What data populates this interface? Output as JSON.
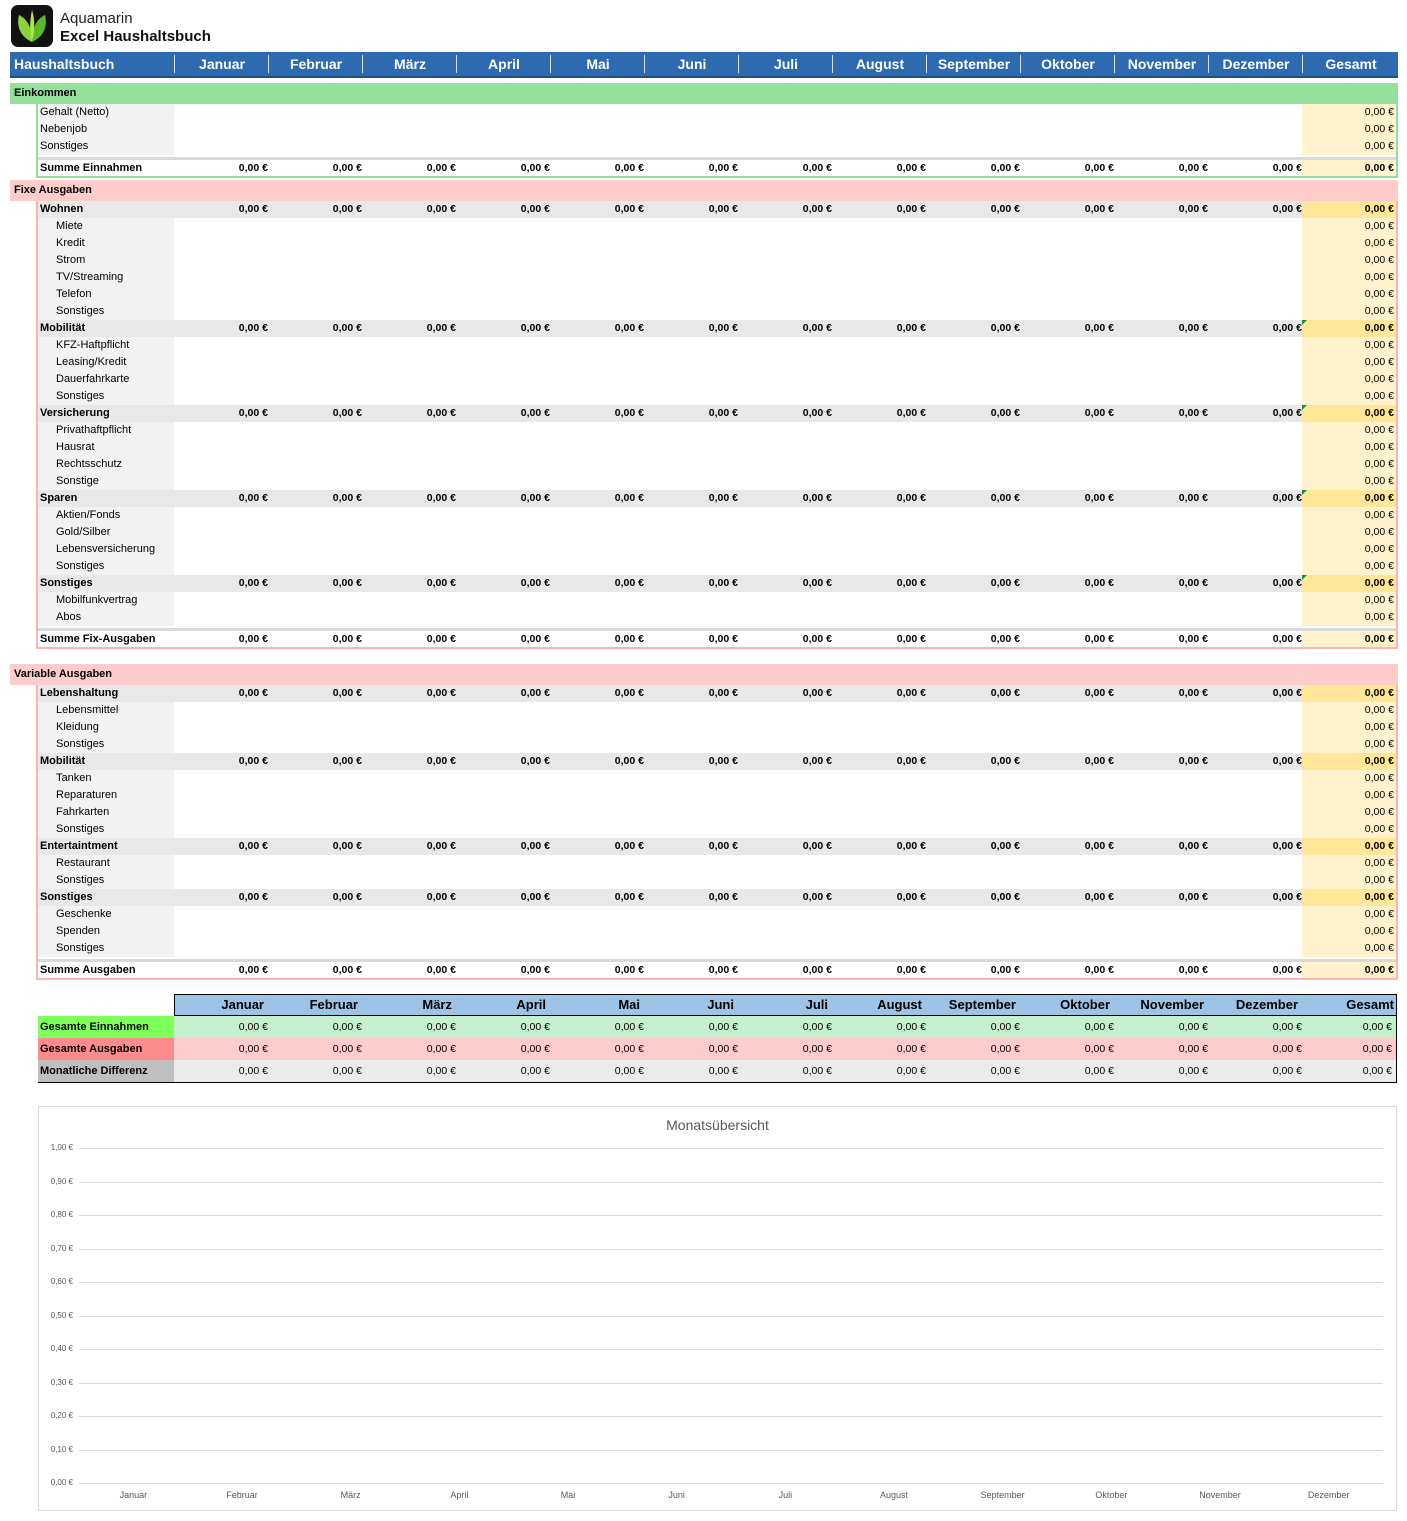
{
  "brand": {
    "line1": "Aquamarin",
    "line2": "Excel Haushaltsbuch"
  },
  "header": {
    "title": "Haushaltsbuch",
    "months": [
      "Januar",
      "Februar",
      "März",
      "April",
      "Mai",
      "Juni",
      "Juli",
      "August",
      "September",
      "Oktober",
      "November",
      "Dezember"
    ],
    "total": "Gesamt"
  },
  "zero": "0,00 €",
  "colors": {
    "header_blue": "#2e6ab0",
    "income_green": "#93e09a",
    "expense_red": "#ffcccc",
    "total_yellow": "#fff2cc",
    "category_yellow": "#ffe699"
  },
  "sections": {
    "income": {
      "title": "Einkommen",
      "rows": [
        {
          "label": "Gehalt (Netto)",
          "type": "item"
        },
        {
          "label": "Nebenjob",
          "type": "item"
        },
        {
          "label": "Sonstiges",
          "type": "item"
        },
        {
          "label": "Summe Einnahmen",
          "type": "sum"
        }
      ]
    },
    "fixed": {
      "title": "Fixe Ausgaben",
      "rows": [
        {
          "label": "Wohnen",
          "type": "cat"
        },
        {
          "label": "Miete",
          "type": "sub"
        },
        {
          "label": "Kredit",
          "type": "sub"
        },
        {
          "label": "Strom",
          "type": "sub"
        },
        {
          "label": "TV/Streaming",
          "type": "sub"
        },
        {
          "label": "Telefon",
          "type": "sub"
        },
        {
          "label": "Sonstiges",
          "type": "sub"
        },
        {
          "label": "Mobilität",
          "type": "cat"
        },
        {
          "label": "KFZ-Haftpflicht",
          "type": "sub"
        },
        {
          "label": "Leasing/Kredit",
          "type": "sub"
        },
        {
          "label": "Dauerfahrkarte",
          "type": "sub"
        },
        {
          "label": "Sonstiges",
          "type": "sub"
        },
        {
          "label": "Versicherung",
          "type": "cat"
        },
        {
          "label": "Privathaftpflicht",
          "type": "sub"
        },
        {
          "label": "Hausrat",
          "type": "sub"
        },
        {
          "label": "Rechtsschutz",
          "type": "sub"
        },
        {
          "label": "Sonstige",
          "type": "sub"
        },
        {
          "label": "Sparen",
          "type": "cat"
        },
        {
          "label": "Aktien/Fonds",
          "type": "sub"
        },
        {
          "label": "Gold/Silber",
          "type": "sub"
        },
        {
          "label": "Lebensversicherung",
          "type": "sub"
        },
        {
          "label": "Sonstiges",
          "type": "sub"
        },
        {
          "label": "Sonstiges",
          "type": "cat"
        },
        {
          "label": "Mobilfunkvertrag",
          "type": "sub"
        },
        {
          "label": "Abos",
          "type": "sub"
        },
        {
          "label": "Summe Fix-Ausgaben",
          "type": "sum"
        }
      ]
    },
    "variable": {
      "title": "Variable Ausgaben",
      "rows": [
        {
          "label": "Lebenshaltung",
          "type": "cat"
        },
        {
          "label": "Lebensmittel",
          "type": "sub"
        },
        {
          "label": "Kleidung",
          "type": "sub"
        },
        {
          "label": "Sonstiges",
          "type": "sub"
        },
        {
          "label": "Mobilität",
          "type": "cat"
        },
        {
          "label": "Tanken",
          "type": "sub"
        },
        {
          "label": "Reparaturen",
          "type": "sub"
        },
        {
          "label": "Fahrkarten",
          "type": "sub"
        },
        {
          "label": "Sonstiges",
          "type": "sub"
        },
        {
          "label": "Entertaintment",
          "type": "cat"
        },
        {
          "label": "Restaurant",
          "type": "sub"
        },
        {
          "label": "Sonstiges",
          "type": "sub"
        },
        {
          "label": "Sonstiges",
          "type": "cat"
        },
        {
          "label": "Geschenke",
          "type": "sub"
        },
        {
          "label": "Spenden",
          "type": "sub"
        },
        {
          "label": "Sonstiges",
          "type": "sub"
        },
        {
          "label": "Summe Ausgaben",
          "type": "sum"
        }
      ]
    }
  },
  "summary": {
    "rows": [
      {
        "label": "Gesamte Einnahmen",
        "label_bg": "#7fff5a",
        "row_bg": "#c6efce"
      },
      {
        "label": "Gesamte Ausgaben",
        "label_bg": "#ff8c8c",
        "row_bg": "#ffcccc"
      },
      {
        "label": "Monatliche Differenz",
        "label_bg": "#bfbfbf",
        "row_bg": "#ebebeb"
      }
    ]
  },
  "chart_data": {
    "type": "bar",
    "title": "Monatsübersicht",
    "categories": [
      "Januar",
      "Februar",
      "März",
      "April",
      "Mai",
      "Juni",
      "Juli",
      "August",
      "September",
      "Oktober",
      "November",
      "Dezember"
    ],
    "values": [
      0,
      0,
      0,
      0,
      0,
      0,
      0,
      0,
      0,
      0,
      0,
      0
    ],
    "ylim": [
      0,
      1
    ],
    "yticks": [
      "1,00 €",
      "0,90 €",
      "0,80 €",
      "0,70 €",
      "0,60 €",
      "0,50 €",
      "0,40 €",
      "0,30 €",
      "0,20 €",
      "0,10 €",
      "0,00 €"
    ],
    "grid": true
  }
}
